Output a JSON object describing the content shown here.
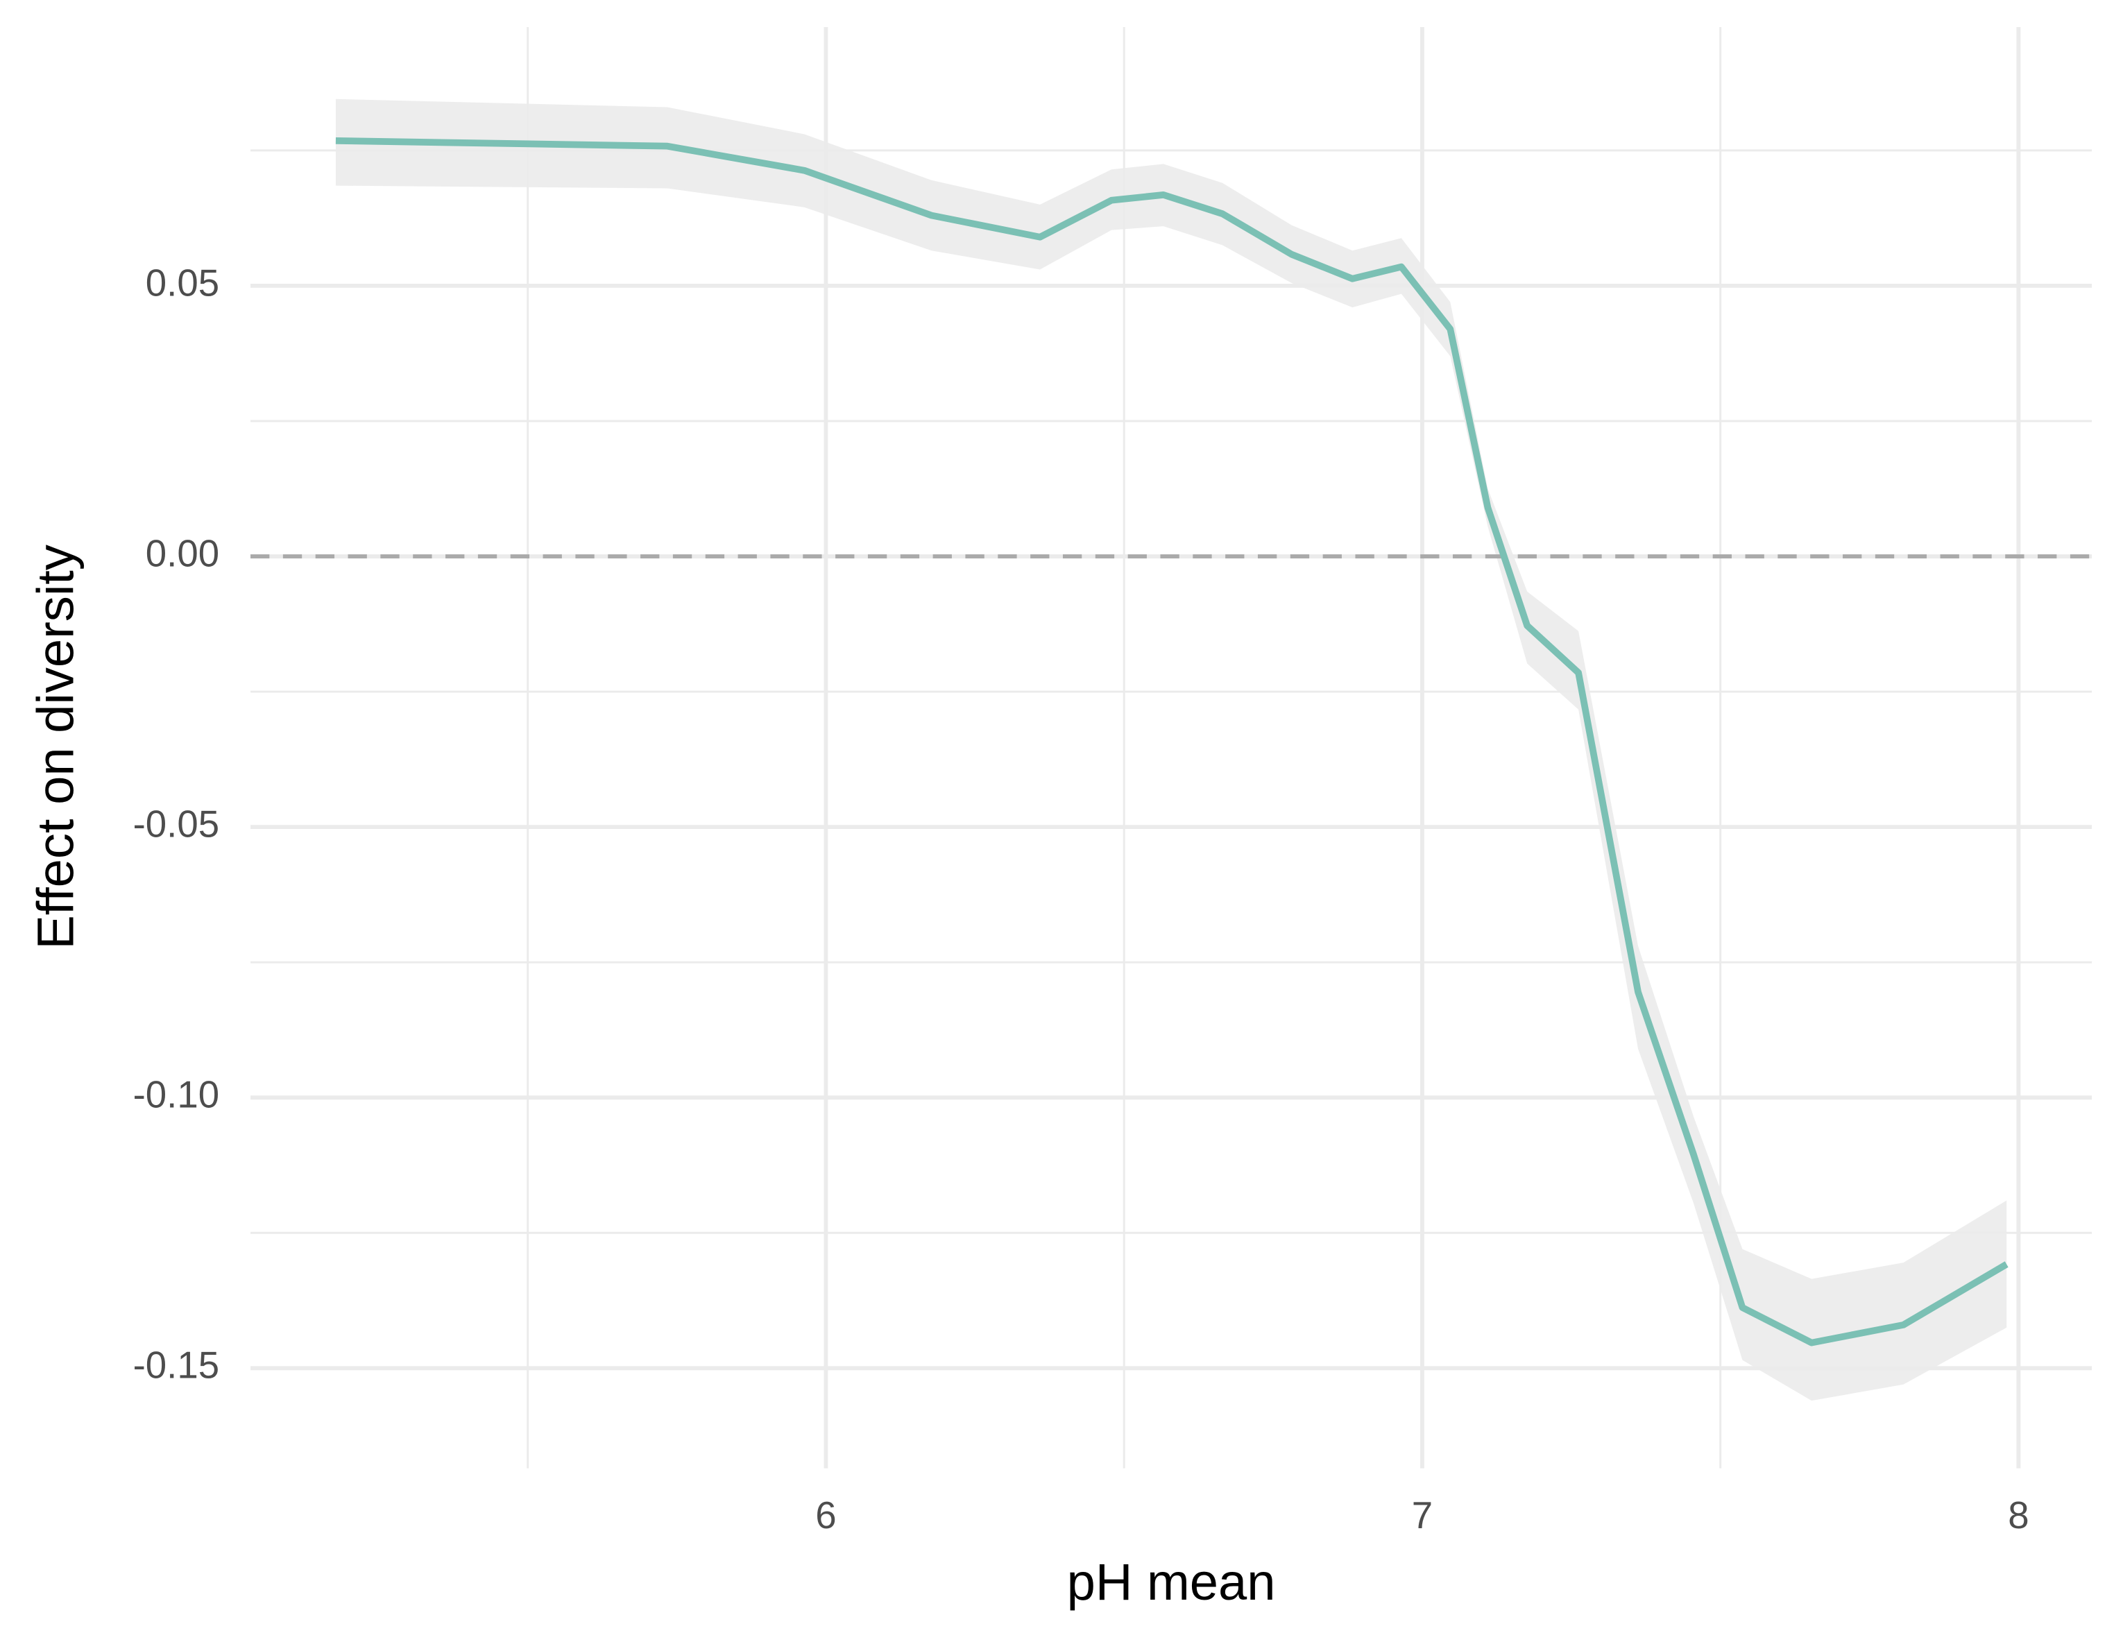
{
  "chart_data": {
    "type": "line",
    "x_label": "pH mean",
    "y_label": "Effect on diversity",
    "x": [
      5.178,
      5.734,
      5.964,
      6.177,
      6.359,
      6.479,
      6.566,
      6.665,
      6.781,
      6.883,
      6.965,
      7.047,
      7.11,
      7.176,
      7.262,
      7.362,
      7.455,
      7.537,
      7.653,
      7.807,
      7.98
    ],
    "values": [
      0.0768,
      0.0758,
      0.0713,
      0.063,
      0.059,
      0.0658,
      0.0668,
      0.0633,
      0.0558,
      0.0513,
      0.0535,
      0.042,
      0.009,
      -0.0128,
      -0.0215,
      -0.0805,
      -0.1105,
      -0.1388,
      -0.1453,
      -0.142,
      -0.1308
    ],
    "lower": [
      0.0685,
      0.068,
      0.0645,
      0.0565,
      0.053,
      0.0603,
      0.061,
      0.0575,
      0.0505,
      0.046,
      0.0485,
      0.037,
      0.0055,
      -0.0198,
      -0.0283,
      -0.091,
      -0.1195,
      -0.1485,
      -0.156,
      -0.153,
      -0.1425
    ],
    "upper": [
      0.0845,
      0.083,
      0.078,
      0.0695,
      0.065,
      0.0715,
      0.0725,
      0.069,
      0.0612,
      0.0565,
      0.0588,
      0.047,
      0.0125,
      -0.0065,
      -0.0138,
      -0.072,
      -0.1035,
      -0.128,
      -0.1335,
      -0.1305,
      -0.119
    ],
    "color": "#7bc0b4",
    "band_color": "#ebebeb",
    "hline": 0,
    "hline_color": "#aaaaaa",
    "xlim": [
      5.035,
      8.123
    ],
    "ylim": [
      -0.1685,
      0.0978
    ],
    "xticks": [
      6,
      7,
      8
    ],
    "yticks": [
      {
        "value": 0.05,
        "label": "0.05"
      },
      {
        "value": 0,
        "label": "0.00"
      },
      {
        "value": -0.05,
        "label": "-0.05"
      },
      {
        "value": -0.1,
        "label": "-0.10"
      },
      {
        "value": -0.15,
        "label": "-0.15"
      }
    ],
    "grid": true
  }
}
